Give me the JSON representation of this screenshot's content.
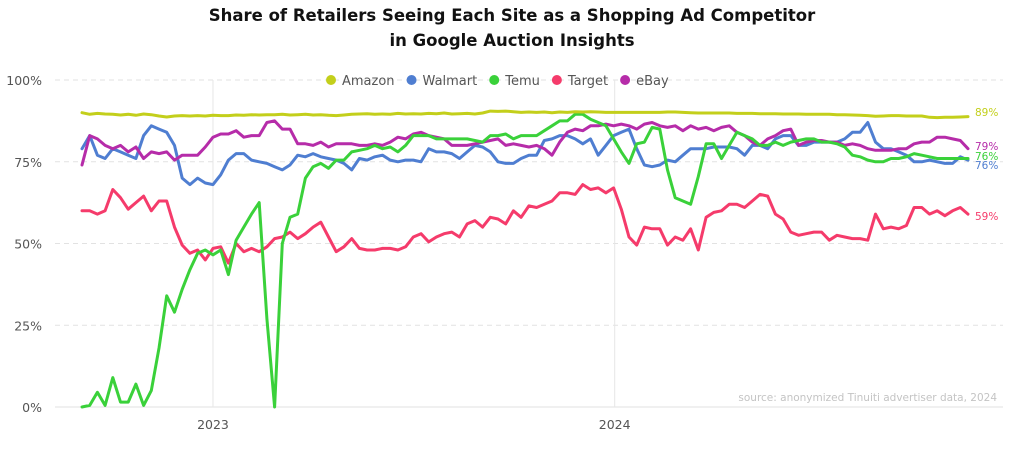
{
  "chart_data": {
    "type": "line",
    "title_lines": [
      "Share of Retailers Seeing Each Site as a Shopping Ad Competitor",
      "in Google Auction Insights"
    ],
    "source": "source: anonymized Tinuiti advertiser data, 2024",
    "x_range": [
      "2022-09-04",
      "2024-11-17"
    ],
    "x_ticks": [
      {
        "label": "2023",
        "value": "2023-01-01"
      },
      {
        "label": "2024",
        "value": "2024-01-01"
      }
    ],
    "y_ticks": [
      {
        "label": "0%",
        "value": 0
      },
      {
        "label": "25%",
        "value": 25
      },
      {
        "label": "50%",
        "value": 50
      },
      {
        "label": "75%",
        "value": 75
      },
      {
        "label": "100%",
        "value": 100
      }
    ],
    "ylim": [
      0,
      100
    ],
    "grid": "horizontal dashed",
    "legend_position": "top-center",
    "x": [
      "2022-09-04",
      "2022-09-11",
      "2022-09-18",
      "2022-09-25",
      "2022-10-02",
      "2022-10-09",
      "2022-10-16",
      "2022-10-23",
      "2022-10-30",
      "2022-11-06",
      "2022-11-13",
      "2022-11-20",
      "2022-11-27",
      "2022-12-04",
      "2022-12-11",
      "2022-12-18",
      "2022-12-25",
      "2023-01-01",
      "2023-01-08",
      "2023-01-15",
      "2023-01-22",
      "2023-01-29",
      "2023-02-05",
      "2023-02-12",
      "2023-02-19",
      "2023-02-26",
      "2023-03-05",
      "2023-03-12",
      "2023-03-19",
      "2023-03-26",
      "2023-04-02",
      "2023-04-09",
      "2023-04-16",
      "2023-04-23",
      "2023-04-30",
      "2023-05-07",
      "2023-05-14",
      "2023-05-21",
      "2023-05-28",
      "2023-06-04",
      "2023-06-11",
      "2023-06-18",
      "2023-06-25",
      "2023-07-02",
      "2023-07-09",
      "2023-07-16",
      "2023-07-23",
      "2023-07-30",
      "2023-08-06",
      "2023-08-13",
      "2023-08-20",
      "2023-08-27",
      "2023-09-03",
      "2023-09-10",
      "2023-09-17",
      "2023-09-24",
      "2023-10-01",
      "2023-10-08",
      "2023-10-15",
      "2023-10-22",
      "2023-10-29",
      "2023-11-05",
      "2023-11-12",
      "2023-11-19",
      "2023-11-26",
      "2023-12-03",
      "2023-12-10",
      "2023-12-17",
      "2023-12-24",
      "2023-12-31",
      "2024-01-07",
      "2024-01-14",
      "2024-01-21",
      "2024-01-28",
      "2024-02-04",
      "2024-02-11",
      "2024-02-18",
      "2024-02-25",
      "2024-03-03",
      "2024-03-10",
      "2024-03-17",
      "2024-03-24",
      "2024-03-31",
      "2024-04-07",
      "2024-04-14",
      "2024-04-21",
      "2024-04-28",
      "2024-05-05",
      "2024-05-12",
      "2024-05-19",
      "2024-05-26",
      "2024-06-02",
      "2024-06-09",
      "2024-06-16",
      "2024-06-23",
      "2024-06-30",
      "2024-07-07",
      "2024-07-14",
      "2024-07-21",
      "2024-07-28",
      "2024-08-04",
      "2024-08-11",
      "2024-08-18",
      "2024-08-25",
      "2024-09-01",
      "2024-09-08",
      "2024-09-15",
      "2024-09-22",
      "2024-09-29",
      "2024-10-06",
      "2024-10-13",
      "2024-10-20",
      "2024-10-27",
      "2024-11-03",
      "2024-11-10",
      "2024-11-17"
    ],
    "series": [
      {
        "name": "Amazon",
        "color": "#c3cf1b",
        "end_label": "89%",
        "values": [
          90,
          89.5,
          89.8,
          89.6,
          89.5,
          89.3,
          89.5,
          89.2,
          89.6,
          89.4,
          89,
          88.7,
          89,
          89.1,
          89,
          89.1,
          89,
          89.2,
          89.1,
          89.1,
          89.3,
          89.2,
          89.4,
          89.3,
          89.4,
          89.4,
          89.5,
          89.3,
          89.4,
          89.5,
          89.3,
          89.4,
          89.2,
          89.1,
          89.3,
          89.5,
          89.6,
          89.7,
          89.5,
          89.6,
          89.5,
          89.8,
          89.6,
          89.7,
          89.6,
          89.8,
          89.7,
          89.9,
          89.6,
          89.7,
          89.8,
          89.6,
          89.9,
          90.5,
          90.4,
          90.5,
          90.3,
          90.1,
          90.2,
          90.1,
          90.2,
          90,
          90.2,
          90.1,
          90.3,
          90.2,
          90.3,
          90.2,
          90.1,
          90.1,
          90.1,
          90.1,
          90.1,
          90.1,
          90.1,
          90.1,
          90.2,
          90.2,
          90.1,
          90,
          89.9,
          89.9,
          89.9,
          89.9,
          89.9,
          89.8,
          89.8,
          89.8,
          89.7,
          89.7,
          89.7,
          89.6,
          89.6,
          89.6,
          89.5,
          89.5,
          89.5,
          89.5,
          89.4,
          89.4,
          89.3,
          89.2,
          89.1,
          88.9,
          89,
          89.1,
          89.1,
          89,
          89,
          89,
          88.6,
          88.5,
          88.6,
          88.6,
          88.7,
          88.8
        ]
      },
      {
        "name": "Walmart",
        "color": "#4f7ed1",
        "end_label": "76%",
        "values": [
          79,
          83,
          77,
          76,
          79,
          78,
          77,
          76,
          83,
          86,
          85,
          84,
          80,
          70,
          68,
          70,
          68.5,
          68,
          71,
          75.5,
          77.5,
          77.5,
          75.5,
          75,
          74.5,
          73.5,
          72.5,
          74,
          77,
          76.5,
          77.5,
          76.5,
          76,
          75.5,
          74.5,
          72.5,
          76,
          75.5,
          76.5,
          77,
          75.5,
          75,
          75.5,
          75.5,
          75,
          79,
          78,
          78,
          77.5,
          76,
          78,
          80,
          79.5,
          78,
          75,
          74.5,
          74.5,
          76,
          77,
          77,
          81.5,
          82,
          83,
          83,
          82,
          80.5,
          82,
          77,
          80,
          83,
          84,
          85,
          79,
          74,
          73.5,
          74,
          75.5,
          75,
          77,
          79,
          79,
          79,
          79.5,
          79.5,
          79.5,
          79,
          77,
          80,
          80,
          79,
          82,
          83,
          83,
          80,
          80,
          81,
          81,
          81,
          81,
          82,
          84,
          84,
          87,
          81,
          79,
          79,
          78,
          77,
          75,
          75,
          75.5,
          75,
          74.5,
          74.5,
          76.5,
          75.5
        ]
      },
      {
        "name": "Temu",
        "color": "#3ad13a",
        "end_label": "76%",
        "values": [
          0,
          0.5,
          4.5,
          0.5,
          9,
          1.5,
          1.5,
          7,
          0.5,
          5,
          18,
          34,
          29,
          36,
          42,
          47,
          48,
          46.5,
          48,
          40.5,
          51,
          55,
          59,
          62.5,
          27,
          0,
          50,
          58,
          59,
          70,
          73.5,
          74.5,
          73,
          75.5,
          75.5,
          78,
          78.5,
          79,
          80,
          79,
          79.5,
          78,
          80,
          83,
          83,
          83,
          82,
          82,
          82,
          82,
          82,
          81.5,
          81,
          83,
          83,
          83.5,
          82,
          83,
          83,
          83,
          84.5,
          86,
          87.5,
          87.5,
          89.5,
          89.5,
          88,
          87,
          86,
          82,
          78,
          74.5,
          80.5,
          81,
          85.5,
          85,
          72.5,
          64,
          63,
          62,
          70.5,
          80.5,
          80.5,
          76,
          80,
          84,
          83,
          82,
          80,
          80,
          81,
          80,
          81,
          81.5,
          82,
          82,
          81,
          81,
          80.5,
          79.5,
          77,
          76.5,
          75.5,
          75,
          75,
          76,
          76,
          76.5,
          77.5,
          77,
          76.5,
          76,
          76,
          76,
          76,
          76
        ]
      },
      {
        "name": "Target",
        "color": "#f53b6b",
        "end_label": "59%",
        "values": [
          60,
          60,
          59,
          60,
          66.5,
          64,
          60.5,
          62.5,
          64.5,
          60,
          63,
          63,
          55,
          49.5,
          47,
          48,
          45,
          48.5,
          49,
          44,
          50,
          47.5,
          48.5,
          47.5,
          49,
          51.5,
          52,
          53.5,
          51.5,
          53,
          55,
          56.5,
          52,
          47.5,
          49,
          51.5,
          48.5,
          48,
          48,
          48.5,
          48.5,
          48,
          49,
          52,
          53,
          50.5,
          52,
          53,
          53.5,
          52,
          56,
          57,
          55,
          58,
          57.5,
          56,
          60,
          58,
          61.5,
          61,
          62,
          63,
          65.5,
          65.5,
          65,
          68,
          66.5,
          67,
          65.5,
          67,
          60.5,
          52,
          49.5,
          55,
          54.5,
          54.5,
          49.5,
          52,
          51,
          54.5,
          48,
          58,
          59.5,
          60,
          62,
          62,
          61,
          63,
          65,
          64.5,
          59,
          57.5,
          53.5,
          52.5,
          53,
          53.5,
          53.5,
          51,
          52.5,
          52,
          51.5,
          51.5,
          51,
          59,
          54.5,
          55,
          54.5,
          55.5,
          61,
          61,
          59,
          60,
          58.5,
          60,
          61,
          59
        ]
      },
      {
        "name": "eBay",
        "color": "#b62ca9",
        "end_label": "79%",
        "values": [
          74,
          83,
          82,
          80,
          79,
          80,
          78,
          79.5,
          76,
          78,
          77.5,
          78,
          75.5,
          77,
          77,
          77,
          79.5,
          82.5,
          83.5,
          83.5,
          84.5,
          82.5,
          83,
          83,
          87,
          87.5,
          85,
          85,
          80.5,
          80.5,
          80,
          81,
          79.5,
          80.5,
          80.5,
          80.5,
          80,
          80,
          80.5,
          80,
          81,
          82.5,
          82,
          83.5,
          84,
          83,
          82.5,
          82,
          80,
          80,
          80,
          80.5,
          81,
          81.5,
          82,
          80,
          80.5,
          80,
          79.5,
          80,
          79,
          77,
          81,
          84,
          85,
          84.5,
          86,
          86,
          86.5,
          86,
          86.5,
          86,
          85,
          86.5,
          87,
          86,
          85.5,
          86,
          84.5,
          86,
          85,
          85.5,
          84.5,
          85.5,
          86,
          84,
          83,
          81,
          80,
          82,
          83,
          84.5,
          85,
          80,
          81,
          81.5,
          81.5,
          81,
          81,
          80,
          80.5,
          80,
          79,
          78.5,
          78.5,
          78.5,
          79,
          79,
          80.5,
          81,
          81,
          82.5,
          82.5,
          82,
          81.5,
          79
        ]
      }
    ]
  }
}
